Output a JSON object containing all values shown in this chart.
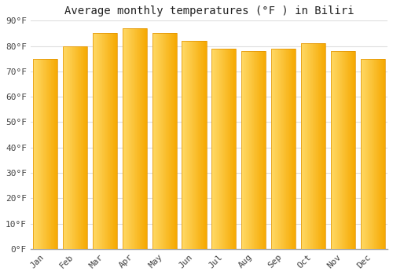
{
  "title": "Average monthly temperatures (°F ) in Biliri",
  "months": [
    "Jan",
    "Feb",
    "Mar",
    "Apr",
    "May",
    "Jun",
    "Jul",
    "Aug",
    "Sep",
    "Oct",
    "Nov",
    "Dec"
  ],
  "values": [
    75,
    80,
    85,
    87,
    85,
    82,
    79,
    78,
    79,
    81,
    78,
    75
  ],
  "bar_color_left": "#FFD966",
  "bar_color_right": "#F5A800",
  "background_color": "#FFFFFF",
  "plot_bg_color": "#FFFFFF",
  "grid_color": "#DDDDDD",
  "spine_color": "#AAAAAA",
  "ylim": [
    0,
    90
  ],
  "ytick_step": 10,
  "title_fontsize": 10,
  "tick_fontsize": 8,
  "font_family": "monospace"
}
